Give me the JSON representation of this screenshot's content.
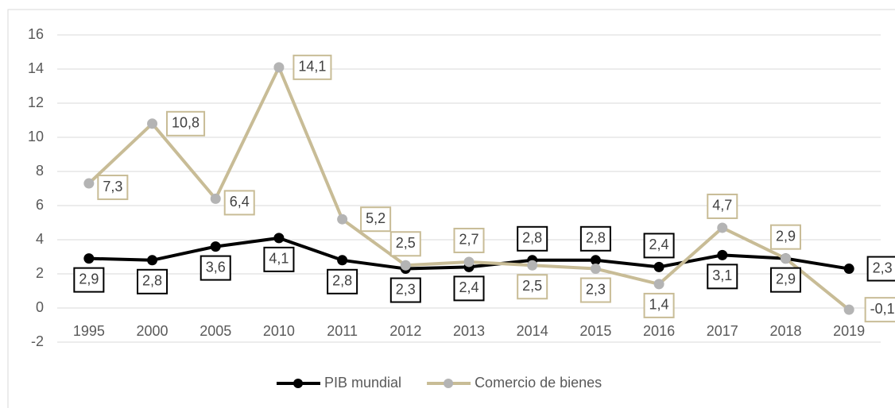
{
  "chart_data": {
    "type": "line",
    "categories": [
      "1995",
      "2000",
      "2005",
      "2010",
      "2011",
      "2012",
      "2013",
      "2014",
      "2015",
      "2016",
      "2017",
      "2018",
      "2019"
    ],
    "series": [
      {
        "name": "PIB mundial",
        "color": "#000000",
        "marker_color": "#000000",
        "values": [
          2.9,
          2.8,
          3.6,
          4.1,
          2.8,
          2.3,
          2.4,
          2.8,
          2.8,
          2.4,
          3.1,
          2.9,
          2.3
        ],
        "value_labels": [
          "2,9",
          "2,8",
          "3,6",
          "4,1",
          "2,8",
          "2,3",
          "2,4",
          "2,8",
          "2,8",
          "2,4",
          "3,1",
          "2,9",
          "2,3"
        ]
      },
      {
        "name": "Comercio de bienes",
        "color": "#c8bc96",
        "marker_color": "#b4b4b4",
        "values": [
          7.3,
          10.8,
          6.4,
          14.1,
          5.2,
          2.5,
          2.7,
          2.5,
          2.3,
          1.4,
          4.7,
          2.9,
          -0.1
        ],
        "value_labels": [
          "7,3",
          "10,8",
          "6,4",
          "14,1",
          "5,2",
          "2,5",
          "2,7",
          "2,5",
          "2,3",
          "1,4",
          "4,7",
          "2,9",
          "-0,1"
        ]
      }
    ],
    "ylim": [
      -2,
      16
    ],
    "yticks": [
      -2,
      0,
      2,
      4,
      6,
      8,
      10,
      12,
      14,
      16
    ],
    "grid": true,
    "legend": "bottom"
  }
}
